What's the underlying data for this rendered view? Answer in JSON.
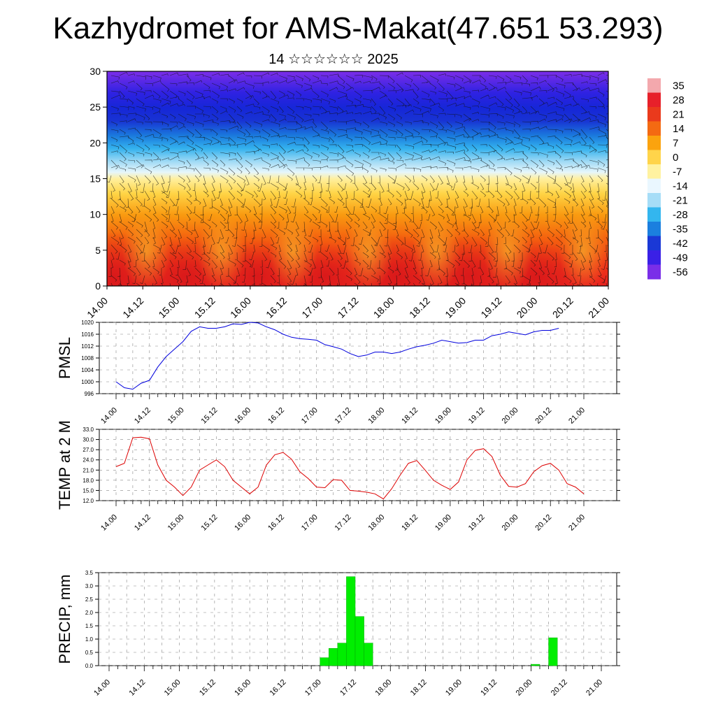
{
  "title": "Kazhydromet for AMS-Makat(47.651 53.293)",
  "subtitle": "14 ☆☆☆☆☆☆ 2025",
  "time_labels": [
    "14.00",
    "14.12",
    "15.00",
    "15.12",
    "16.00",
    "16.12",
    "17.00",
    "17.12",
    "18.00",
    "18.12",
    "19.00",
    "19.12",
    "20.00",
    "20.12",
    "21.00"
  ],
  "colorbar": {
    "labels": [
      "35",
      "28",
      "21",
      "14",
      "7",
      "0",
      "-7",
      "-14",
      "-21",
      "-28",
      "-35",
      "-42",
      "-49",
      "-56"
    ],
    "colors": [
      "#f3a8ad",
      "#e7202a",
      "#ea3a1c",
      "#f46a12",
      "#fba30e",
      "#ffd44a",
      "#fff2a0",
      "#eaf7ff",
      "#a6ddf7",
      "#33b6ef",
      "#1b7fdf",
      "#1a38d6",
      "#3a20e6",
      "#7a2ee8"
    ]
  },
  "chart_data": [
    {
      "type": "heatmap",
      "title": "",
      "xlabel": "",
      "ylabel": "",
      "ylim": [
        0,
        30
      ],
      "yticks": [
        0,
        5,
        10,
        15,
        20,
        25,
        30
      ],
      "x": [
        "14.00",
        "14.12",
        "15.00",
        "15.12",
        "16.00",
        "16.12",
        "17.00",
        "17.12",
        "18.00",
        "18.12",
        "19.00",
        "19.12",
        "20.00",
        "20.12",
        "21.00"
      ],
      "note_values": "temperature (colorbar) by model level 0-30, overlaid wind barbs",
      "level_profile": [
        {
          "level": 0,
          "temp": 21
        },
        {
          "level": 5,
          "temp": 14
        },
        {
          "level": 10,
          "temp": 7
        },
        {
          "level": 13,
          "temp": 0
        },
        {
          "level": 16,
          "temp": -7
        },
        {
          "level": 18,
          "temp": -21
        },
        {
          "level": 20,
          "temp": -35
        },
        {
          "level": 23,
          "temp": -49
        },
        {
          "level": 25,
          "temp": -56
        },
        {
          "level": 28,
          "temp": -49
        },
        {
          "level": 30,
          "temp": -56
        }
      ]
    },
    {
      "type": "line",
      "ylabel": "PMSL",
      "ylim": [
        996,
        1020
      ],
      "yticks": [
        "996",
        "1000",
        "1004",
        "1008",
        "1012",
        "1016",
        "1020"
      ],
      "color": "#0000dd",
      "x_step_hours": 3,
      "values": [
        1000,
        998,
        997.5,
        999.5,
        1000.5,
        1005,
        1008.5,
        1011,
        1013.5,
        1017,
        1018.5,
        1018,
        1018,
        1018.5,
        1019.5,
        1019.3,
        1020,
        1019.8,
        1018.5,
        1017.5,
        1016,
        1015,
        1014.5,
        1014.3,
        1014,
        1012.5,
        1011.8,
        1011,
        1009.5,
        1008.5,
        1009,
        1010,
        1010,
        1009.5,
        1010,
        1011,
        1011.8,
        1012.3,
        1013,
        1014,
        1013.5,
        1013,
        1013.2,
        1014,
        1014,
        1015.5,
        1016,
        1016.8,
        1016.3,
        1015.8,
        1016.8,
        1017.3,
        1017.3,
        1018
      ]
    },
    {
      "type": "line",
      "ylabel": "TEMP at 2 M",
      "ylim": [
        12,
        33
      ],
      "yticks": [
        "12.0",
        "15.0",
        "18.0",
        "21.0",
        "24.0",
        "27.0",
        "30.0",
        "33.0"
      ],
      "color": "#dd0000",
      "x_step_hours": 3,
      "values": [
        22,
        23,
        30.5,
        30.7,
        30.2,
        22.5,
        18,
        16,
        13.5,
        16,
        21,
        22.5,
        24,
        22,
        18,
        16,
        14,
        16,
        22.5,
        25.5,
        26.2,
        24.2,
        20.5,
        18.5,
        16,
        15.8,
        18.2,
        18,
        15,
        14.8,
        14.5,
        14,
        12.5,
        15.5,
        19.5,
        23,
        23.8,
        21,
        18,
        16.5,
        15.3,
        17.5,
        24,
        26.8,
        27.3,
        25,
        19.5,
        16.2,
        16,
        17,
        20.5,
        22.3,
        23,
        21,
        17,
        16,
        14
      ]
    },
    {
      "type": "bar",
      "ylabel": "PRECIP, mm",
      "ylim": [
        0,
        3.5
      ],
      "yticks": [
        "0.0",
        "0.5",
        "1.0",
        "1.5",
        "2.0",
        "2.5",
        "3.0",
        "3.5"
      ],
      "color": "#00ee00",
      "bars": [
        {
          "time": "17.00",
          "value": 0.3
        },
        {
          "time": "17.03",
          "value": 0.65
        },
        {
          "time": "17.06",
          "value": 0.85
        },
        {
          "time": "17.09",
          "value": 3.35
        },
        {
          "time": "17.12",
          "value": 1.85
        },
        {
          "time": "17.15",
          "value": 0.85
        },
        {
          "time": "20.00",
          "value": 0.05
        },
        {
          "time": "20.06",
          "value": 1.05
        }
      ]
    }
  ]
}
